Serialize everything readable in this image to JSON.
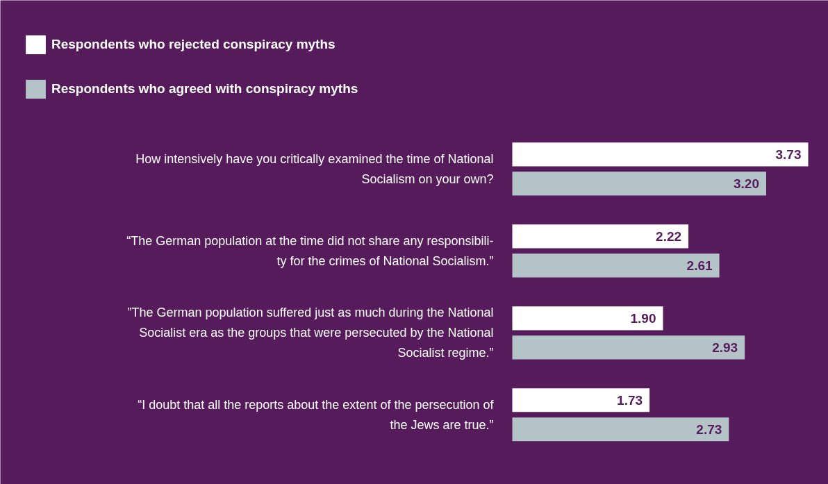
{
  "chart_data": {
    "type": "bar",
    "orientation": "horizontal",
    "categories": [
      "How intensively have you critically examined the time of National\nSocialism on your own?",
      "“The German population at the time did not share any responsibili-\nty for the crimes of National Socialism.”",
      "”The German population suffered just as much during the National\nSocialist era as the groups that were persecuted by the National\nSocialist regime.”",
      "“I doubt that all the reports about the extent of the persecution of\nthe Jews are true.”"
    ],
    "series": [
      {
        "name": "Respondents who rejected conspiracy myths",
        "color": "#ffffff",
        "values": [
          3.73,
          2.22,
          1.9,
          1.73
        ],
        "value_labels": [
          "3.73",
          "2.22",
          "1.90",
          "1.73"
        ]
      },
      {
        "name": "Respondents who agreed with conspiracy myths",
        "color": "#b3c3c8",
        "values": [
          3.2,
          2.61,
          2.93,
          2.73
        ],
        "value_labels": [
          "3.20",
          "2.61",
          "2.93",
          "2.73"
        ]
      }
    ],
    "tick_labels": false,
    "grid": false,
    "legend": "top left"
  }
}
